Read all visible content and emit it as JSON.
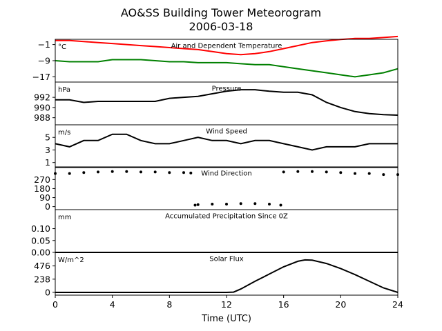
{
  "figure": {
    "title_line1": "AO&SS Building Tower Meteorogram",
    "title_line2": "2006-03-18",
    "xlabel": "Time (UTC)"
  },
  "chart_data": [
    {
      "type": "line",
      "title": "Air and Dependent Temperature",
      "unit": "°C",
      "xlim": [
        0,
        24
      ],
      "ylim": [
        -19.6,
        1.6
      ],
      "yticks": [
        -1,
        -9,
        -17
      ],
      "ytick_labels": [
        "−1",
        "−9",
        "−17"
      ],
      "series": [
        {
          "color": "#ff0000",
          "x": [
            0,
            1,
            2,
            3,
            4,
            5,
            6,
            7,
            8,
            9,
            10,
            11,
            12,
            13,
            14,
            15,
            16,
            17,
            18,
            19,
            20,
            21,
            22,
            23,
            24
          ],
          "y": [
            1,
            1,
            0.5,
            0,
            -0.5,
            -1,
            -1.5,
            -2,
            -2.5,
            -3,
            -3.5,
            -4.5,
            -5.5,
            -6,
            -5.5,
            -4.5,
            -3,
            -1.5,
            0,
            0.8,
            1.5,
            2,
            2,
            2.5,
            3
          ]
        },
        {
          "color": "#008000",
          "x": [
            0,
            1,
            2,
            3,
            4,
            5,
            6,
            7,
            8,
            9,
            10,
            11,
            12,
            13,
            14,
            15,
            16,
            17,
            18,
            19,
            20,
            21,
            22,
            23,
            24
          ],
          "y": [
            -9,
            -9.5,
            -9.5,
            -9.5,
            -8.5,
            -8.5,
            -8.5,
            -9,
            -9.5,
            -9.5,
            -10,
            -10,
            -10,
            -10.5,
            -11,
            -11,
            -12,
            -13,
            -14,
            -15,
            -16,
            -17,
            -16,
            -15,
            -13
          ]
        }
      ]
    },
    {
      "type": "line",
      "title": "Pressure",
      "unit": "hPa",
      "xlim": [
        0,
        24
      ],
      "ylim": [
        986.6,
        995.0
      ],
      "yticks": [
        992,
        990,
        988
      ],
      "ytick_labels": [
        "992",
        "990",
        "988"
      ],
      "series": [
        {
          "color": "#000000",
          "x": [
            0,
            1,
            2,
            3,
            4,
            5,
            6,
            7,
            8,
            9,
            10,
            11,
            12,
            13,
            14,
            15,
            16,
            17,
            18,
            19,
            20,
            21,
            22,
            23,
            24
          ],
          "y": [
            991.5,
            991.5,
            991,
            991.2,
            991.2,
            991.2,
            991.2,
            991.2,
            991.8,
            992,
            992.2,
            992.7,
            993.2,
            993.5,
            993.5,
            993.2,
            993,
            993,
            992.5,
            991,
            990,
            989.2,
            988.8,
            988.6,
            988.5
          ]
        }
      ]
    },
    {
      "type": "line",
      "title": "Wind Speed",
      "unit": "m/s",
      "xlim": [
        0,
        24
      ],
      "ylim": [
        0.2,
        7.0
      ],
      "yticks": [
        5,
        3,
        1
      ],
      "ytick_labels": [
        "5",
        "3",
        "1"
      ],
      "series": [
        {
          "color": "#000000",
          "x": [
            0,
            1,
            2,
            3,
            4,
            5,
            6,
            7,
            8,
            9,
            10,
            11,
            12,
            13,
            14,
            15,
            16,
            17,
            18,
            19,
            20,
            21,
            22,
            23,
            24
          ],
          "y": [
            4,
            3.5,
            4.5,
            4.5,
            5.5,
            5.5,
            4.5,
            4,
            4,
            4.5,
            5,
            4.5,
            4.5,
            4,
            4.5,
            4.5,
            4,
            3.5,
            3,
            3.5,
            3.5,
            3.5,
            4,
            4,
            4
          ]
        }
      ]
    },
    {
      "type": "scatter",
      "title": "Wind Direction",
      "unit": "",
      "xlim": [
        0,
        24
      ],
      "ylim": [
        -30,
        396
      ],
      "yticks": [
        270,
        180,
        90,
        0
      ],
      "ytick_labels": [
        "270",
        "180",
        "90",
        "0"
      ],
      "series": [
        {
          "color": "#000000",
          "x": [
            0,
            1,
            2,
            3,
            4,
            5,
            6,
            7,
            8,
            9,
            9.5,
            9.8,
            10,
            11,
            12,
            13,
            14,
            15,
            15.8,
            16,
            17,
            18,
            19,
            20,
            21,
            22,
            23,
            24
          ],
          "y": [
            330,
            330,
            340,
            345,
            350,
            350,
            345,
            345,
            340,
            340,
            335,
            15,
            20,
            25,
            25,
            30,
            30,
            25,
            15,
            345,
            350,
            350,
            345,
            340,
            330,
            330,
            320,
            320
          ]
        }
      ]
    },
    {
      "type": "line",
      "title": "Accumulated Precipitation Since 0Z",
      "unit": "mm",
      "xlim": [
        0,
        24
      ],
      "ylim": [
        0,
        0.18
      ],
      "yticks": [
        0.1,
        0.05,
        0.0
      ],
      "ytick_labels": [
        "0.10",
        "0.05",
        "0.00"
      ],
      "series": [
        {
          "color": "#000000",
          "x": [
            0,
            24
          ],
          "y": [
            0,
            0
          ]
        }
      ]
    },
    {
      "type": "line",
      "title": "Solar Flux",
      "unit": "W/m^2",
      "xlim": [
        0,
        24
      ],
      "ylim": [
        -50,
        720
      ],
      "yticks": [
        476,
        238,
        0
      ],
      "ytick_labels": [
        "476",
        "238",
        "0"
      ],
      "series": [
        {
          "color": "#000000",
          "x": [
            0,
            2,
            4,
            6,
            8,
            10,
            12,
            12.5,
            13,
            14,
            15,
            16,
            17,
            17.5,
            18,
            19,
            20,
            21,
            22,
            23,
            24
          ],
          "y": [
            0,
            0,
            0,
            0,
            0,
            0,
            0,
            5,
            60,
            200,
            330,
            460,
            560,
            585,
            580,
            520,
            430,
            320,
            200,
            80,
            0
          ]
        }
      ]
    }
  ],
  "x_axis": {
    "ticks": [
      0,
      4,
      8,
      12,
      16,
      20,
      24
    ],
    "tick_labels": [
      "0",
      "4",
      "8",
      "12",
      "16",
      "20",
      "24"
    ]
  }
}
